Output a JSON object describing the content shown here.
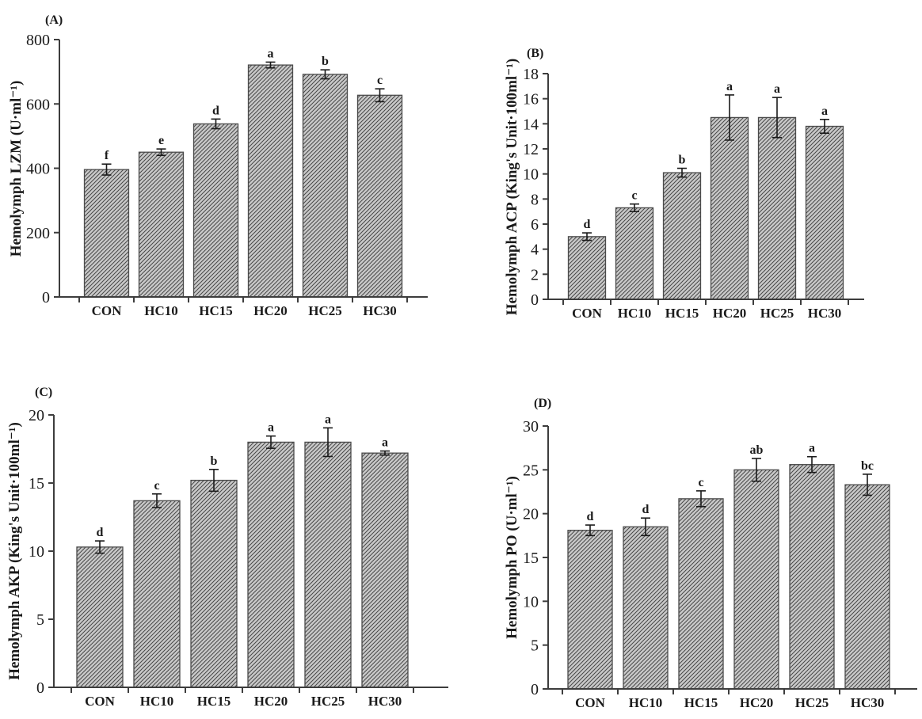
{
  "figure": {
    "background": "#ffffff",
    "colors": {
      "bar_fill": "#c9c9c9",
      "hatch_line": "#474747",
      "bar_outline": "#4a4a4a",
      "axis_line": "#3d3d3d",
      "error_bar": "#1a1a1a",
      "text": "#1a1a1a"
    }
  },
  "chart_data": [
    {
      "type": "bar",
      "panel_label": "(A)",
      "title": "",
      "xlabel": "",
      "ylabel": "Hemolymph LZM (U·ml⁻¹)",
      "categories": [
        "CON",
        "HC10",
        "HC15",
        "HC20",
        "HC25",
        "HC30"
      ],
      "values": [
        396,
        450,
        538,
        721,
        692,
        627
      ],
      "errors": [
        17,
        10,
        15,
        9,
        14,
        20
      ],
      "sig_letters": [
        "f",
        "e",
        "d",
        "a",
        "b",
        "c"
      ],
      "ylim": [
        0,
        800
      ],
      "yticks": [
        0,
        200,
        400,
        600,
        800
      ],
      "grid": "off",
      "legend": "none",
      "bar_style": "diagonal-hatch"
    },
    {
      "type": "bar",
      "panel_label": "(B)",
      "title": "",
      "xlabel": "",
      "ylabel": "Hemolymph ACP (King's Unit·100ml⁻¹)",
      "categories": [
        "CON",
        "HC10",
        "HC15",
        "HC20",
        "HC25",
        "HC30"
      ],
      "values": [
        5.0,
        7.3,
        10.1,
        14.5,
        14.5,
        13.8
      ],
      "errors": [
        0.3,
        0.3,
        0.35,
        1.8,
        1.6,
        0.55
      ],
      "sig_letters": [
        "d",
        "c",
        "b",
        "a",
        "a",
        "a"
      ],
      "ylim": [
        0,
        18
      ],
      "yticks": [
        0,
        2,
        4,
        6,
        8,
        10,
        12,
        14,
        16,
        18
      ],
      "grid": "off",
      "legend": "none",
      "bar_style": "diagonal-hatch"
    },
    {
      "type": "bar",
      "panel_label": "(C)",
      "title": "",
      "xlabel": "",
      "ylabel": "Hemolymph AKP (King's Unit·100ml⁻¹)",
      "categories": [
        "CON",
        "HC10",
        "HC15",
        "HC20",
        "HC25",
        "HC30"
      ],
      "values": [
        10.3,
        13.7,
        15.2,
        18.0,
        18.0,
        17.2
      ],
      "errors": [
        0.45,
        0.5,
        0.8,
        0.45,
        1.05,
        0.15
      ],
      "sig_letters": [
        "d",
        "c",
        "b",
        "a",
        "a",
        "a"
      ],
      "ylim": [
        0,
        20
      ],
      "yticks": [
        0,
        5,
        10,
        15,
        20
      ],
      "grid": "off",
      "legend": "none",
      "bar_style": "diagonal-hatch"
    },
    {
      "type": "bar",
      "panel_label": "(D)",
      "title": "",
      "xlabel": "",
      "ylabel": "Hemolymph PO (U·ml⁻¹)",
      "categories": [
        "CON",
        "HC10",
        "HC15",
        "HC20",
        "HC25",
        "HC30"
      ],
      "values": [
        18.1,
        18.5,
        21.7,
        25.0,
        25.6,
        23.3
      ],
      "errors": [
        0.6,
        1.0,
        0.9,
        1.3,
        0.9,
        1.2
      ],
      "sig_letters": [
        "d",
        "d",
        "c",
        "ab",
        "a",
        "bc"
      ],
      "ylim": [
        0,
        30
      ],
      "yticks": [
        0,
        5,
        10,
        15,
        20,
        25,
        30
      ],
      "grid": "off",
      "legend": "none",
      "bar_style": "diagonal-hatch"
    }
  ]
}
